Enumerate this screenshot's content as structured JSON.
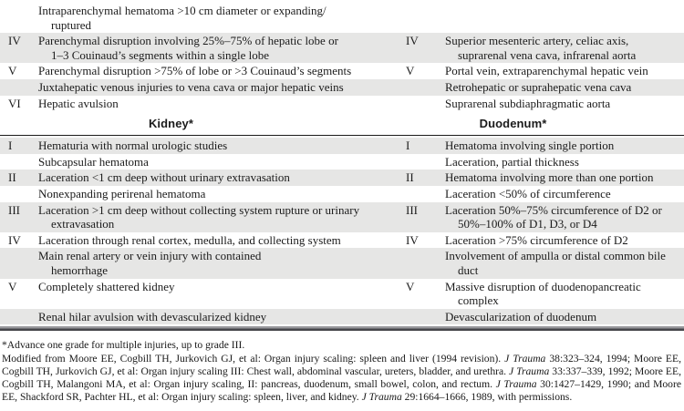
{
  "colors": {
    "row_shade": "#e6e6e5",
    "header_rule": "#1a1a1a",
    "bottom_rule_top": "#98989c",
    "bottom_rule_bottom": "#46464a"
  },
  "table": {
    "sections": [
      {
        "header": null,
        "rows": [
          {
            "shaded": false,
            "left": {
              "grade": "",
              "text": "Intraparenchymal hematoma >10 cm diameter or expanding/\nruptured"
            },
            "right": {
              "grade": "",
              "text": ""
            }
          },
          {
            "shaded": true,
            "left": {
              "grade": "IV",
              "text": "Parenchymal disruption involving 25%–75% of hepatic lobe or\n1–3 Couinaud’s segments within a single lobe"
            },
            "right": {
              "grade": "IV",
              "text": "Superior mesenteric artery, celiac axis, suprarenal vena cava, infrarenal aorta"
            }
          },
          {
            "shaded": false,
            "left": {
              "grade": "V",
              "text": "Parenchymal disruption >75% of lobe or >3 Couinaud’s segments"
            },
            "right": {
              "grade": "V",
              "text": "Portal vein, extraparenchymal hepatic vein"
            }
          },
          {
            "shaded": true,
            "left": {
              "grade": "",
              "text": "Juxtahepatic venous injuries to vena cava or major hepatic veins"
            },
            "right": {
              "grade": "",
              "text": "Retrohepatic or suprahepatic vena cava"
            }
          },
          {
            "shaded": false,
            "left": {
              "grade": "VI",
              "text": "Hepatic avulsion"
            },
            "right": {
              "grade": "",
              "text": "Suprarenal subdiaphragmatic aorta"
            }
          }
        ]
      },
      {
        "header": {
          "left": "Kidney*",
          "right": "Duodenum*"
        },
        "rows": [
          {
            "shaded": true,
            "left": {
              "grade": "I",
              "text": "Hematuria with normal urologic studies"
            },
            "right": {
              "grade": "I",
              "text": "Hematoma involving single portion"
            }
          },
          {
            "shaded": false,
            "left": {
              "grade": "",
              "text": "Subcapsular hematoma"
            },
            "right": {
              "grade": "",
              "text": "Laceration, partial thickness"
            }
          },
          {
            "shaded": true,
            "left": {
              "grade": "II",
              "text": "Laceration <1 cm deep without urinary extravasation"
            },
            "right": {
              "grade": "II",
              "text": "Hematoma involving more than one portion"
            }
          },
          {
            "shaded": false,
            "left": {
              "grade": "",
              "text": "Nonexpanding perirenal hematoma"
            },
            "right": {
              "grade": "",
              "text": "Laceration <50% of circumference"
            }
          },
          {
            "shaded": true,
            "left": {
              "grade": "III",
              "text": "Laceration >1 cm deep without collecting system rupture or urinary\nextravasation"
            },
            "right": {
              "grade": "III",
              "text": "Laceration 50%–75% circumference of D2 or\n50%–100% of D1, D3, or D4"
            }
          },
          {
            "shaded": false,
            "left": {
              "grade": "IV",
              "text": "Laceration through renal cortex, medulla, and collecting system"
            },
            "right": {
              "grade": "IV",
              "text": "Laceration >75% circumference of D2"
            }
          },
          {
            "shaded": true,
            "left": {
              "grade": "",
              "text": "Main renal artery or vein injury with contained\nhemorrhage"
            },
            "right": {
              "grade": "",
              "text": "Involvement of ampulla or distal common bile\nduct"
            }
          },
          {
            "shaded": false,
            "left": {
              "grade": "V",
              "text": "Completely shattered kidney"
            },
            "right": {
              "grade": "V",
              "text": "Massive disruption of duodenopancreatic\ncomplex"
            }
          },
          {
            "shaded": true,
            "left": {
              "grade": "",
              "text": "Renal hilar avulsion with devascularized kidney"
            },
            "right": {
              "grade": "",
              "text": "Devascularization of duodenum"
            }
          }
        ]
      }
    ]
  },
  "footnotes": {
    "note1": "*Advance one grade for multiple injuries, up to grade III.",
    "credit_segments": [
      {
        "text": "Modified from Moore EE, Cogbill TH, Jurkovich GJ, et al: Organ injury scaling: spleen and liver (1994 revision). ",
        "italic": false
      },
      {
        "text": "J Trauma",
        "italic": true
      },
      {
        "text": " 38:323–324, 1994; Moore EE, Cogbill TH, Jurkovich GJ, et al: Organ injury scaling III: Chest wall, abdominal vascular, ureters, bladder, and urethra. ",
        "italic": false
      },
      {
        "text": "J Trauma",
        "italic": true
      },
      {
        "text": " 33:337–339, 1992; Moore EE, Cogbill TH, Malangoni MA, et al: Organ injury scaling, II: pancreas, duodenum, small bowel, colon, and rectum. ",
        "italic": false
      },
      {
        "text": "J Trauma",
        "italic": true
      },
      {
        "text": " 30:1427–1429, 1990; and Moore EE, Shackford SR, Pachter HL, et al: Organ injury scaling: spleen, liver, and kidney. ",
        "italic": false
      },
      {
        "text": "J Trauma",
        "italic": true
      },
      {
        "text": " 29:1664–1666, 1989, with permissions.",
        "italic": false
      }
    ]
  }
}
